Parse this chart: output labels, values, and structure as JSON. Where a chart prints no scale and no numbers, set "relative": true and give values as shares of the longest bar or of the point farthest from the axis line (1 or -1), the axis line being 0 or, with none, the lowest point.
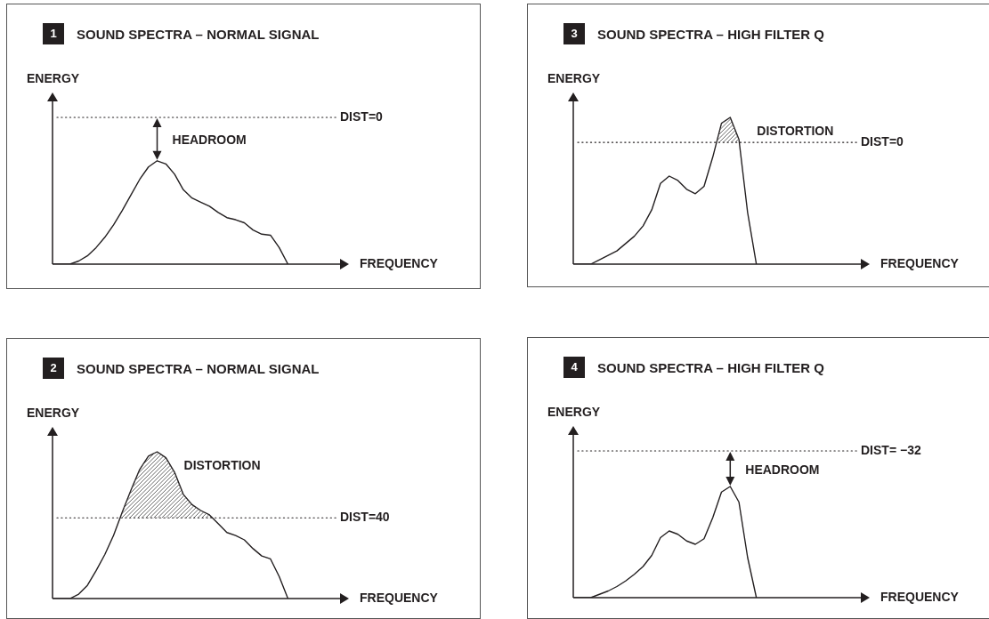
{
  "chart_data": [
    {
      "type": "line",
      "title": "1 SOUND SPECTRA – NORMAL SIGNAL",
      "xlabel": "FREQUENCY",
      "ylabel": "ENERGY",
      "relative": true,
      "marker": "none",
      "legend": false,
      "grid": false,
      "categories": [
        null,
        null,
        null,
        null,
        null,
        null,
        null,
        null,
        null,
        null,
        null,
        null,
        null,
        null,
        null,
        null,
        null,
        null,
        null,
        null,
        null,
        null,
        null,
        null,
        null,
        null,
        null,
        null,
        null,
        null,
        null,
        null,
        null,
        null,
        null
      ],
      "series": [
        {
          "color": "#231f20",
          "values": [
            0,
            0,
            0,
            0.03,
            0.08,
            0.16,
            0.26,
            0.38,
            0.52,
            0.67,
            0.82,
            0.94,
            1.0,
            0.97,
            0.87,
            0.72,
            0.64,
            0.6,
            0.56,
            0.5,
            0.45,
            0.43,
            0.4,
            0.33,
            0.29,
            0.28,
            0.16,
            0,
            null,
            null,
            null,
            null,
            null,
            null,
            null
          ]
        }
      ],
      "ref_lines": [
        {
          "axis": "y",
          "value": 1.42
        }
      ],
      "annotations": [
        "HEADROOM",
        "DIST=0"
      ]
    },
    {
      "type": "line",
      "title": "3 SOUND SPECTRA – HIGH FILTER Q",
      "xlabel": "FREQUENCY",
      "ylabel": "ENERGY",
      "relative": true,
      "marker": "none",
      "legend": false,
      "grid": false,
      "categories": [
        null,
        null,
        null,
        null,
        null,
        null,
        null,
        null,
        null,
        null,
        null,
        null,
        null,
        null,
        null,
        null,
        null,
        null,
        null,
        null,
        null,
        null,
        null,
        null,
        null,
        null,
        null,
        null,
        null,
        null,
        null,
        null,
        null,
        null,
        null
      ],
      "series": [
        {
          "color": "#231f20",
          "values": [
            0,
            0,
            0,
            0.03,
            0.06,
            0.09,
            0.14,
            0.19,
            0.26,
            0.37,
            0.55,
            0.6,
            0.57,
            0.51,
            0.48,
            0.53,
            0.73,
            0.96,
            1.0,
            0.85,
            0.35,
            0,
            null,
            null,
            null,
            null,
            null,
            null,
            null,
            null,
            null,
            null,
            null,
            null,
            null
          ]
        }
      ],
      "ref_lines": [
        {
          "axis": "y",
          "value": 0.83
        }
      ],
      "annotations": [
        "DISTORTION",
        "DIST=0"
      ]
    },
    {
      "type": "line",
      "title": "2 SOUND SPECTRA – NORMAL SIGNAL",
      "xlabel": "FREQUENCY",
      "ylabel": "ENERGY",
      "relative": true,
      "marker": "none",
      "legend": false,
      "grid": false,
      "categories": [
        null,
        null,
        null,
        null,
        null,
        null,
        null,
        null,
        null,
        null,
        null,
        null,
        null,
        null,
        null,
        null,
        null,
        null,
        null,
        null,
        null,
        null,
        null,
        null,
        null,
        null,
        null,
        null,
        null,
        null,
        null,
        null,
        null,
        null,
        null
      ],
      "series": [
        {
          "color": "#231f20",
          "values": [
            0,
            0,
            0,
            0.03,
            0.09,
            0.19,
            0.3,
            0.43,
            0.59,
            0.74,
            0.88,
            0.97,
            1.0,
            0.96,
            0.86,
            0.71,
            0.64,
            0.6,
            0.57,
            0.51,
            0.45,
            0.43,
            0.4,
            0.34,
            0.29,
            0.27,
            0.15,
            0,
            null,
            null,
            null,
            null,
            null,
            null,
            null
          ]
        }
      ],
      "ref_lines": [
        {
          "axis": "y",
          "value": 0.55
        }
      ],
      "annotations": [
        "DISTORTION",
        "DIST=40"
      ]
    },
    {
      "type": "line",
      "title": "4 SOUND SPECTRA – HIGH FILTER Q",
      "xlabel": "FREQUENCY",
      "ylabel": "ENERGY",
      "relative": true,
      "marker": "none",
      "legend": false,
      "grid": false,
      "categories": [
        null,
        null,
        null,
        null,
        null,
        null,
        null,
        null,
        null,
        null,
        null,
        null,
        null,
        null,
        null,
        null,
        null,
        null,
        null,
        null,
        null,
        null,
        null,
        null,
        null,
        null,
        null,
        null,
        null,
        null,
        null,
        null,
        null,
        null,
        null
      ],
      "series": [
        {
          "color": "#231f20",
          "values": [
            0,
            0,
            0,
            0.03,
            0.06,
            0.1,
            0.15,
            0.21,
            0.28,
            0.38,
            0.54,
            0.6,
            0.57,
            0.51,
            0.48,
            0.53,
            0.72,
            0.95,
            1.0,
            0.86,
            0.36,
            0,
            null,
            null,
            null,
            null,
            null,
            null,
            null,
            null,
            null,
            null,
            null,
            null,
            null
          ]
        }
      ],
      "ref_lines": [
        {
          "axis": "y",
          "value": 1.32
        }
      ],
      "annotations": [
        "HEADROOM",
        "DIST= −32"
      ]
    }
  ]
}
